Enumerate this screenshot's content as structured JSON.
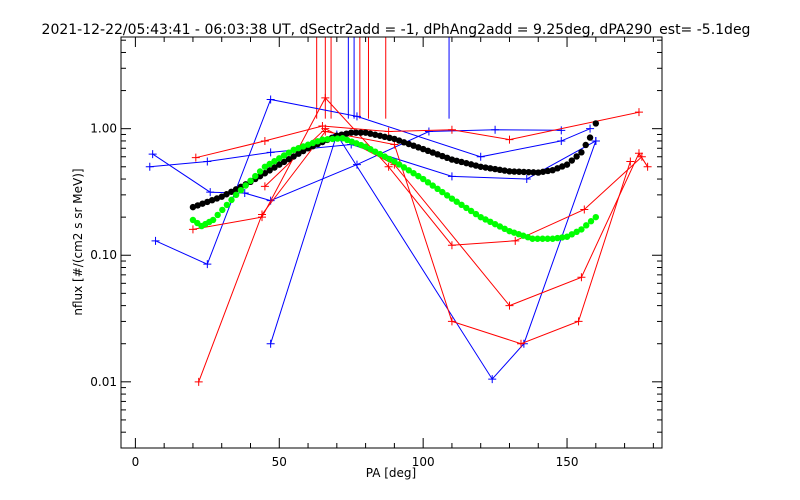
{
  "chart_data": {
    "type": "scatter",
    "title": "2021-12-22/05:43:41 - 06:03:38 UT, dSectr2add = -1, dPhAng2add = 9.25deg, dPA290_est=  -5.1deg",
    "xlabel": "PA [deg]",
    "ylabel": "nflux [#/(cm2 s sr MeV)]",
    "xlim": [
      -5,
      183
    ],
    "ylim": [
      0.003,
      5.3
    ],
    "yscale": "log",
    "grid": false,
    "x_ticks": [
      0,
      50,
      100,
      150
    ],
    "x_tick_labels": [
      "0",
      "50",
      "100",
      "150"
    ],
    "y_ticks": [
      0.01,
      0.1,
      1.0
    ],
    "y_tick_labels": [
      "0.01",
      "0.10",
      "1.00"
    ],
    "colors": {
      "blue": "#0000ff",
      "red": "#ff0000",
      "black": "#000000",
      "green": "#00ff00"
    },
    "series": [
      {
        "color": "blue",
        "style": "line-plus",
        "x": [
          6,
          26,
          38,
          47,
          77,
          102,
          125,
          148
        ],
        "y": [
          0.63,
          0.315,
          0.31,
          0.27,
          0.52,
          0.95,
          0.98,
          0.97
        ]
      },
      {
        "color": "blue",
        "style": "line-plus",
        "x": [
          5,
          25,
          47,
          75,
          110,
          136,
          160
        ],
        "y": [
          0.5,
          0.55,
          0.65,
          0.75,
          0.42,
          0.4,
          0.8
        ]
      },
      {
        "color": "blue",
        "style": "line-plus",
        "x": [
          7,
          25,
          47,
          77,
          120,
          148,
          158
        ],
        "y": [
          0.13,
          0.085,
          1.7,
          1.25,
          0.6,
          0.8,
          1.0
        ]
      },
      {
        "color": "blue",
        "style": "line-plus",
        "x": [
          47,
          70,
          124,
          135,
          160
        ],
        "y": [
          0.02,
          0.9,
          0.0105,
          0.02,
          0.8
        ]
      },
      {
        "color": "red",
        "style": "line-plus",
        "x": [
          21,
          45,
          65,
          88,
          110,
          130,
          175
        ],
        "y": [
          0.59,
          0.8,
          1.05,
          0.95,
          0.98,
          0.82,
          1.35
        ]
      },
      {
        "color": "red",
        "style": "line-plus",
        "x": [
          20,
          44,
          66,
          88,
          110,
          132,
          156,
          176
        ],
        "y": [
          0.16,
          0.2,
          1.75,
          0.5,
          0.12,
          0.13,
          0.23,
          0.6
        ]
      },
      {
        "color": "red",
        "style": "line-plus",
        "x": [
          22,
          44,
          66,
          90,
          110,
          134,
          154,
          172
        ],
        "y": [
          0.01,
          0.21,
          0.95,
          0.75,
          0.03,
          0.02,
          0.03,
          0.55
        ]
      },
      {
        "color": "red",
        "style": "line-plus",
        "x": [
          45,
          66,
          90,
          130,
          155,
          175,
          178
        ],
        "y": [
          0.35,
          1.0,
          0.52,
          0.04,
          0.067,
          0.64,
          0.5
        ]
      },
      {
        "color": "black",
        "style": "dots",
        "x": [
          20,
          30,
          40,
          50,
          60,
          70,
          75,
          80,
          90,
          100,
          110,
          120,
          130,
          140,
          145,
          150,
          155,
          158,
          160
        ],
        "y": [
          0.24,
          0.29,
          0.38,
          0.52,
          0.7,
          0.88,
          0.93,
          0.93,
          0.83,
          0.69,
          0.57,
          0.5,
          0.46,
          0.45,
          0.47,
          0.52,
          0.65,
          0.85,
          1.1
        ]
      },
      {
        "color": "green",
        "style": "dots",
        "x": [
          20,
          23,
          27,
          35,
          45,
          55,
          65,
          72,
          80,
          90,
          100,
          110,
          120,
          130,
          138,
          145,
          150,
          155,
          160
        ],
        "y": [
          0.19,
          0.17,
          0.19,
          0.3,
          0.5,
          0.68,
          0.82,
          0.84,
          0.72,
          0.55,
          0.4,
          0.28,
          0.2,
          0.155,
          0.135,
          0.135,
          0.14,
          0.16,
          0.2
        ]
      }
    ],
    "annotations": [
      {
        "type": "vertical_lines",
        "color": "red",
        "x": [
          63,
          66,
          68,
          78,
          81,
          87
        ]
      },
      {
        "type": "vertical_lines",
        "color": "blue",
        "x": [
          74,
          76,
          109
        ]
      }
    ]
  }
}
